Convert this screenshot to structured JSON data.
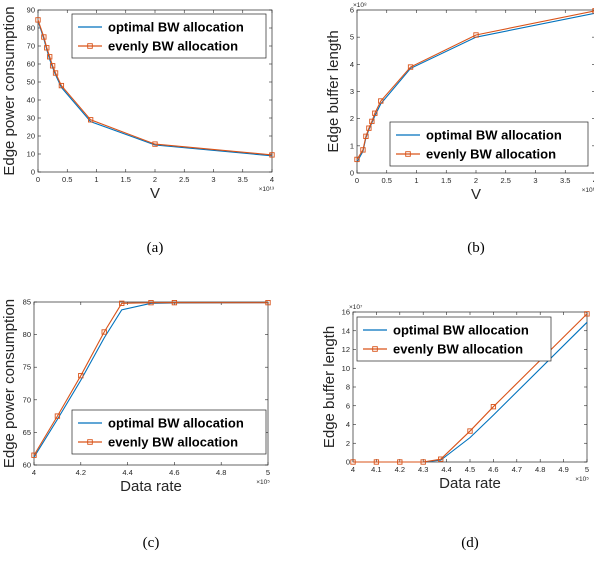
{
  "chart_data": [
    {
      "type": "line",
      "caption": "(a)",
      "xlabel": "V",
      "ylabel": "Edge power consumption",
      "x_exponent": "×10¹³",
      "y_exponent": "",
      "xlim": [
        0,
        40000000000000.0
      ],
      "ylim": [
        0,
        90
      ],
      "xticks": [
        0,
        5000000000000.0,
        10000000000000.0,
        15000000000000.0,
        20000000000000.0,
        25000000000000.0,
        30000000000000.0,
        35000000000000.0,
        40000000000000.0
      ],
      "xtick_labels": [
        "0",
        "0.5",
        "1",
        "1.5",
        "2",
        "2.5",
        "3",
        "3.5",
        "4"
      ],
      "yticks": [
        0,
        10,
        20,
        30,
        40,
        50,
        60,
        70,
        80,
        90
      ],
      "ytick_labels": [
        "0",
        "10",
        "20",
        "30",
        "40",
        "50",
        "60",
        "70",
        "80",
        "90"
      ],
      "legend_position": "top-right",
      "x": [
        0,
        1000000000000.0,
        1500000000000.0,
        2000000000000.0,
        2500000000000.0,
        3000000000000.0,
        4000000000000.0,
        9000000000000.0,
        20000000000000.0,
        40000000000000.0
      ],
      "series": [
        {
          "name": "optimal BW allocation",
          "color": "#0072BD",
          "marker": "none",
          "values": [
            84,
            74,
            68,
            62.5,
            58,
            54,
            47,
            28,
            15,
            9
          ]
        },
        {
          "name": "evenly BW allocation",
          "color": "#D95319",
          "marker": "square",
          "values": [
            84.5,
            75,
            69,
            64,
            59,
            55,
            48,
            29,
            15.5,
            9.5
          ]
        }
      ]
    },
    {
      "type": "line",
      "caption": "(b)",
      "xlabel": "V",
      "ylabel": "Edge buffer length",
      "x_exponent": "×10¹³",
      "y_exponent": "×10⁸",
      "xlim": [
        0,
        40000000000000.0
      ],
      "ylim": [
        0,
        600000000.0
      ],
      "xticks": [
        0,
        5000000000000.0,
        10000000000000.0,
        15000000000000.0,
        20000000000000.0,
        25000000000000.0,
        30000000000000.0,
        35000000000000.0,
        40000000000000.0
      ],
      "xtick_labels": [
        "0",
        "0.5",
        "1",
        "1.5",
        "2",
        "2.5",
        "3",
        "3.5",
        "4"
      ],
      "yticks": [
        0,
        100000000.0,
        200000000.0,
        300000000.0,
        400000000.0,
        500000000.0,
        600000000.0
      ],
      "ytick_labels": [
        "0",
        "1",
        "2",
        "3",
        "4",
        "5",
        "6"
      ],
      "legend_position": "center-right",
      "x": [
        0,
        1000000000000.0,
        1500000000000.0,
        2000000000000.0,
        2500000000000.0,
        3000000000000.0,
        4000000000000.0,
        9000000000000.0,
        20000000000000.0,
        40000000000000.0
      ],
      "series": [
        {
          "name": "optimal BW allocation",
          "color": "#0072BD",
          "marker": "none",
          "values": [
            40000000.0,
            80000000.0,
            130000000.0,
            160000000.0,
            185000000.0,
            210000000.0,
            255000000.0,
            385000000.0,
            500000000.0,
            588000000.0
          ]
        },
        {
          "name": "evenly BW allocation",
          "color": "#D95319",
          "marker": "square",
          "values": [
            50000000.0,
            85000000.0,
            135000000.0,
            165000000.0,
            190000000.0,
            220000000.0,
            265000000.0,
            390000000.0,
            508000000.0,
            597000000.0
          ]
        }
      ]
    },
    {
      "type": "line",
      "caption": "(c)",
      "xlabel": "Data rate",
      "ylabel": "Edge power consumption",
      "x_exponent": "×10⁵",
      "y_exponent": "",
      "xlim": [
        400000,
        500000
      ],
      "ylim": [
        60,
        85
      ],
      "xticks": [
        400000,
        420000,
        440000,
        460000,
        480000,
        500000
      ],
      "xtick_labels": [
        "4",
        "4.2",
        "4.4",
        "4.6",
        "4.8",
        "5"
      ],
      "yticks": [
        60,
        65,
        70,
        75,
        80,
        85
      ],
      "ytick_labels": [
        "60",
        "65",
        "70",
        "75",
        "80",
        "85"
      ],
      "legend_position": "bottom-right",
      "x": [
        400000,
        410000,
        420000,
        430000,
        437500,
        450000,
        460000,
        500000
      ],
      "series": [
        {
          "name": "optimal BW allocation",
          "color": "#0072BD",
          "marker": "none",
          "values": [
            61.2,
            67.0,
            73.0,
            79.5,
            83.8,
            84.8,
            84.85,
            84.9
          ]
        },
        {
          "name": "evenly BW allocation",
          "color": "#D95319",
          "marker": "square",
          "values": [
            61.5,
            67.5,
            73.7,
            80.4,
            84.8,
            84.9,
            84.9,
            84.9
          ]
        }
      ]
    },
    {
      "type": "line",
      "caption": "(d)",
      "xlabel": "Data rate",
      "ylabel": "Edge buffer length",
      "x_exponent": "×10⁵",
      "y_exponent": "×10⁷",
      "xlim": [
        400000,
        500000
      ],
      "ylim": [
        0,
        160000000.0
      ],
      "xticks": [
        400000,
        410000,
        420000,
        430000,
        440000,
        450000,
        460000,
        470000,
        480000,
        490000,
        500000
      ],
      "xtick_labels": [
        "4",
        "4.1",
        "4.2",
        "4.3",
        "4.4",
        "4.5",
        "4.6",
        "4.7",
        "4.8",
        "4.9",
        "5"
      ],
      "yticks": [
        0,
        20000000.0,
        40000000.0,
        60000000.0,
        80000000.0,
        100000000.0,
        120000000.0,
        140000000.0,
        160000000.0
      ],
      "ytick_labels": [
        "0",
        "2",
        "4",
        "6",
        "8",
        "10",
        "12",
        "14",
        "16"
      ],
      "legend_position": "top-left",
      "x": [
        400000,
        410000,
        420000,
        430000,
        437500,
        450000,
        460000,
        500000
      ],
      "series": [
        {
          "name": "optimal BW allocation",
          "color": "#0072BD",
          "marker": "none",
          "values": [
            0,
            0,
            0,
            0,
            2000000.0,
            26000000.0,
            50000000.0,
            149000000.0
          ]
        },
        {
          "name": "evenly BW allocation",
          "color": "#D95319",
          "marker": "square",
          "values": [
            0,
            0,
            0,
            0,
            3000000.0,
            33000000.0,
            59000000.0,
            158000000.0
          ]
        }
      ]
    }
  ]
}
